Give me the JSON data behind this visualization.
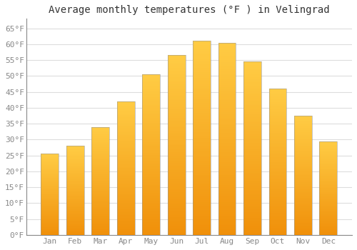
{
  "title": "Average monthly temperatures (°F ) in Velingrad",
  "months": [
    "Jan",
    "Feb",
    "Mar",
    "Apr",
    "May",
    "Jun",
    "Jul",
    "Aug",
    "Sep",
    "Oct",
    "Nov",
    "Dec"
  ],
  "values": [
    25.5,
    28.0,
    34.0,
    42.0,
    50.5,
    56.5,
    61.0,
    60.5,
    54.5,
    46.0,
    37.5,
    29.5
  ],
  "bar_color_top": "#FFCC44",
  "bar_color_bottom": "#F0900A",
  "ylim": [
    0,
    68
  ],
  "yticks": [
    0,
    5,
    10,
    15,
    20,
    25,
    30,
    35,
    40,
    45,
    50,
    55,
    60,
    65
  ],
  "ytick_labels": [
    "0°F",
    "5°F",
    "10°F",
    "15°F",
    "20°F",
    "25°F",
    "30°F",
    "35°F",
    "40°F",
    "45°F",
    "50°F",
    "55°F",
    "60°F",
    "65°F"
  ],
  "background_color": "#FFFFFF",
  "grid_color": "#DDDDDD",
  "title_fontsize": 10,
  "tick_fontsize": 8,
  "bar_width": 0.7,
  "tick_color": "#888888",
  "spine_color": "#888888",
  "bar_edge_color": "#999999",
  "bar_edge_width": 0.4
}
